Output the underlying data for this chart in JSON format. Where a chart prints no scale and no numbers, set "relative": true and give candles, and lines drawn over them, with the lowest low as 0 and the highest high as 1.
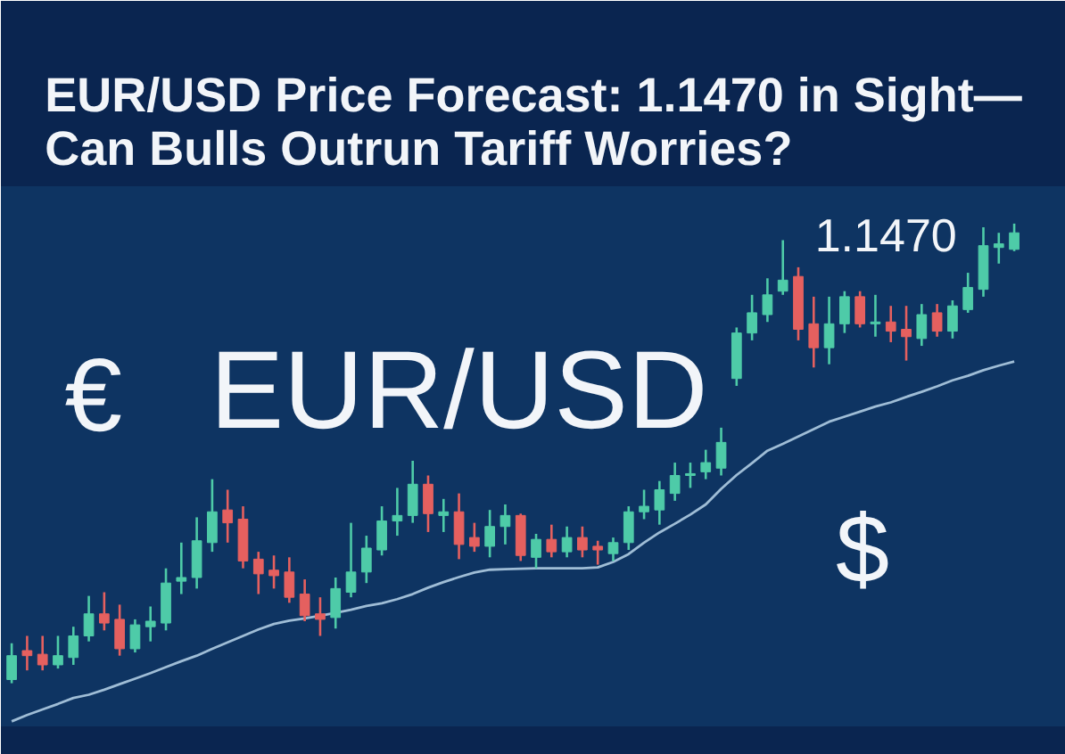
{
  "chart_data": {
    "type": "candlestick",
    "title": "EUR/USD Price Forecast: 1.1470 in Sight—\nCan Bulls Outrun Tariff Worries?",
    "annotations": [
      "1.1470",
      "€",
      "EUR/USD",
      "$"
    ],
    "relative": true,
    "tick_labels": false,
    "categories": [
      null,
      null,
      null,
      null,
      null,
      null,
      null,
      null,
      null,
      null,
      null,
      null,
      null,
      null,
      null,
      null,
      null,
      null,
      null,
      null,
      null,
      null,
      null,
      null,
      null,
      null,
      null,
      null,
      null,
      null,
      null,
      null,
      null,
      null,
      null,
      null,
      null,
      null,
      null,
      null,
      null,
      null,
      null,
      null,
      null,
      null,
      null,
      null,
      null,
      null,
      null,
      null,
      null,
      null,
      null,
      null,
      null,
      null,
      null,
      null,
      null,
      null,
      null,
      null,
      null,
      null
    ],
    "series": [
      {
        "ohlc": [
          [
            0.008,
            0.087,
            0.0,
            0.06
          ],
          [
            0.071,
            0.103,
            0.028,
            0.06
          ],
          [
            0.063,
            0.103,
            0.028,
            0.04
          ],
          [
            0.04,
            0.103,
            0.032,
            0.06
          ],
          [
            0.056,
            0.123,
            0.04,
            0.103
          ],
          [
            0.103,
            0.19,
            0.091,
            0.151
          ],
          [
            0.151,
            0.198,
            0.115,
            0.131
          ],
          [
            0.139,
            0.171,
            0.06,
            0.075
          ],
          [
            0.075,
            0.139,
            0.067,
            0.127
          ],
          [
            0.123,
            0.167,
            0.091,
            0.135
          ],
          [
            0.131,
            0.25,
            0.115,
            0.218
          ],
          [
            0.222,
            0.306,
            0.194,
            0.23
          ],
          [
            0.23,
            0.361,
            0.206,
            0.31
          ],
          [
            0.306,
            0.444,
            0.286,
            0.373
          ],
          [
            0.377,
            0.421,
            0.306,
            0.349
          ],
          [
            0.357,
            0.385,
            0.25,
            0.266
          ],
          [
            0.27,
            0.286,
            0.194,
            0.238
          ],
          [
            0.246,
            0.278,
            0.206,
            0.234
          ],
          [
            0.242,
            0.274,
            0.175,
            0.187
          ],
          [
            0.194,
            0.226,
            0.135,
            0.147
          ],
          [
            0.151,
            0.187,
            0.103,
            0.139
          ],
          [
            0.143,
            0.23,
            0.119,
            0.206
          ],
          [
            0.198,
            0.349,
            0.187,
            0.242
          ],
          [
            0.242,
            0.321,
            0.218,
            0.294
          ],
          [
            0.29,
            0.385,
            0.278,
            0.353
          ],
          [
            0.353,
            0.425,
            0.321,
            0.365
          ],
          [
            0.365,
            0.484,
            0.349,
            0.433
          ],
          [
            0.433,
            0.452,
            0.329,
            0.369
          ],
          [
            0.365,
            0.401,
            0.329,
            0.373
          ],
          [
            0.373,
            0.413,
            0.27,
            0.302
          ],
          [
            0.317,
            0.349,
            0.286,
            0.298
          ],
          [
            0.298,
            0.377,
            0.274,
            0.341
          ],
          [
            0.341,
            0.389,
            0.302,
            0.365
          ],
          [
            0.365,
            0.369,
            0.266,
            0.278
          ],
          [
            0.274,
            0.325,
            0.25,
            0.313
          ],
          [
            0.313,
            0.345,
            0.274,
            0.286
          ],
          [
            0.286,
            0.341,
            0.274,
            0.317
          ],
          [
            0.317,
            0.341,
            0.274,
            0.29
          ],
          [
            0.298,
            0.31,
            0.258,
            0.29
          ],
          [
            0.282,
            0.317,
            0.266,
            0.306
          ],
          [
            0.306,
            0.385,
            0.29,
            0.373
          ],
          [
            0.373,
            0.421,
            0.357,
            0.385
          ],
          [
            0.377,
            0.44,
            0.345,
            0.421
          ],
          [
            0.413,
            0.48,
            0.397,
            0.452
          ],
          [
            0.452,
            0.48,
            0.425,
            0.456
          ],
          [
            0.46,
            0.508,
            0.444,
            0.48
          ],
          [
            0.468,
            0.556,
            0.452,
            0.524
          ],
          [
            0.663,
            0.774,
            0.647,
            0.762
          ],
          [
            0.762,
            0.845,
            0.746,
            0.806
          ],
          [
            0.802,
            0.881,
            0.786,
            0.845
          ],
          [
            0.853,
            0.964,
            0.845,
            0.877
          ],
          [
            0.885,
            0.905,
            0.746,
            0.77
          ],
          [
            0.782,
            0.841,
            0.687,
            0.73
          ],
          [
            0.73,
            0.841,
            0.694,
            0.782
          ],
          [
            0.782,
            0.853,
            0.762,
            0.841
          ],
          [
            0.841,
            0.853,
            0.774,
            0.782
          ],
          [
            0.782,
            0.845,
            0.754,
            0.786
          ],
          [
            0.786,
            0.821,
            0.742,
            0.766
          ],
          [
            0.77,
            0.821,
            0.702,
            0.754
          ],
          [
            0.75,
            0.825,
            0.734,
            0.802
          ],
          [
            0.806,
            0.825,
            0.754,
            0.766
          ],
          [
            0.766,
            0.833,
            0.75,
            0.821
          ],
          [
            0.813,
            0.893,
            0.806,
            0.861
          ],
          [
            0.857,
            0.992,
            0.841,
            0.952
          ],
          [
            0.948,
            0.98,
            0.913,
            0.956
          ],
          [
            0.944,
            1.0,
            0.94,
            0.98
          ]
        ],
        "colors": [
          "#4ecba8",
          "#e5605f",
          "#e5605f",
          "#4ecba8",
          "#4ecba8",
          "#4ecba8",
          "#e5605f",
          "#e5605f",
          "#4ecba8",
          "#4ecba8",
          "#4ecba8",
          "#4ecba8",
          "#4ecba8",
          "#4ecba8",
          "#e5605f",
          "#e5605f",
          "#e5605f",
          "#e5605f",
          "#e5605f",
          "#e5605f",
          "#e5605f",
          "#4ecba8",
          "#4ecba8",
          "#4ecba8",
          "#4ecba8",
          "#4ecba8",
          "#4ecba8",
          "#e5605f",
          "#4ecba8",
          "#e5605f",
          "#e5605f",
          "#4ecba8",
          "#4ecba8",
          "#e5605f",
          "#4ecba8",
          "#e5605f",
          "#4ecba8",
          "#e5605f",
          "#e5605f",
          "#4ecba8",
          "#4ecba8",
          "#4ecba8",
          "#4ecba8",
          "#4ecba8",
          "#4ecba8",
          "#4ecba8",
          "#4ecba8",
          "#4ecba8",
          "#4ecba8",
          "#4ecba8",
          "#4ecba8",
          "#e5605f",
          "#e5605f",
          "#4ecba8",
          "#4ecba8",
          "#e5605f",
          "#4ecba8",
          "#e5605f",
          "#e5605f",
          "#4ecba8",
          "#e5605f",
          "#4ecba8",
          "#4ecba8",
          "#4ecba8",
          "#4ecba8",
          "#4ecba8"
        ]
      },
      {
        "type": "line",
        "color": "#9fbdd6",
        "values": [
          -0.083,
          -0.069,
          -0.057,
          -0.045,
          -0.032,
          -0.025,
          -0.014,
          -0.002,
          0.01,
          0.022,
          0.035,
          0.048,
          0.06,
          0.075,
          0.089,
          0.103,
          0.117,
          0.129,
          0.136,
          0.141,
          0.147,
          0.153,
          0.16,
          0.168,
          0.174,
          0.183,
          0.194,
          0.208,
          0.22,
          0.231,
          0.241,
          0.247,
          0.248,
          0.249,
          0.25,
          0.25,
          0.25,
          0.25,
          0.252,
          0.264,
          0.281,
          0.306,
          0.328,
          0.347,
          0.367,
          0.389,
          0.423,
          0.453,
          0.479,
          0.506,
          0.521,
          0.537,
          0.553,
          0.569,
          0.58,
          0.591,
          0.602,
          0.611,
          0.623,
          0.634,
          0.646,
          0.659,
          0.669,
          0.681,
          0.691,
          0.7
        ]
      }
    ]
  }
}
